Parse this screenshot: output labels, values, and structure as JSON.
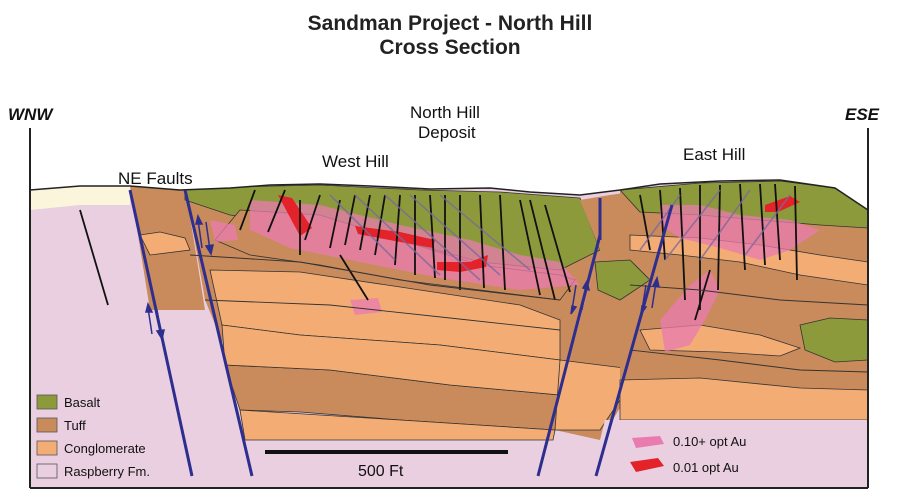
{
  "title": {
    "line1": "Sandman Project - North Hill",
    "line2": "Cross Section"
  },
  "orientation": {
    "left": "WNW",
    "right": "ESE"
  },
  "labels": {
    "deposit_line1": "North Hill",
    "deposit_line2": "Deposit",
    "west_hill": "West Hill",
    "east_hill": "East Hill",
    "ne_faults": "NE Faults"
  },
  "scale_bar": {
    "label": "500 Ft"
  },
  "legend": {
    "units": [
      {
        "label": "Basalt",
        "color": "#8c9a3b"
      },
      {
        "label": "Tuff",
        "color": "#c98a5c"
      },
      {
        "label": "Conglomerate",
        "color": "#f3ad74"
      },
      {
        "label": "Raspberry Fm.",
        "color": "#e9cfdf"
      }
    ],
    "grades": [
      {
        "label": "0.10+ opt Au",
        "color": "#e97bb0"
      },
      {
        "label": "0.01 opt Au",
        "color": "#e3222a"
      }
    ]
  },
  "colors": {
    "fault": "#2e2e8f",
    "alluvium": "#fbf5dc"
  }
}
